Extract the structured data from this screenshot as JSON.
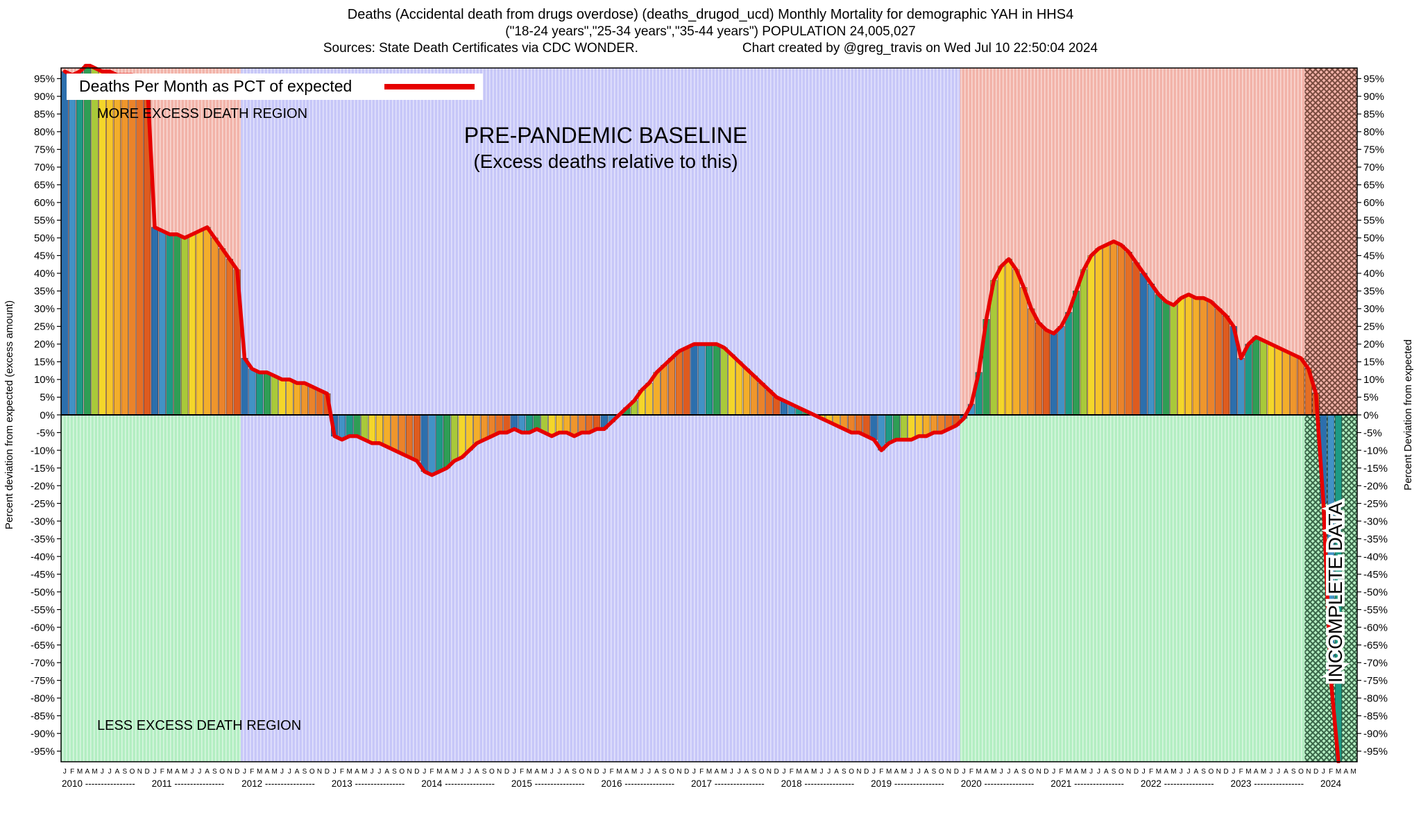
{
  "header": {
    "title_line1": "Deaths (Accidental death from drugs overdose) (deaths_drugod_ucd) Monthly Mortality for demographic YAH in HHS4",
    "title_line2": "(\"18-24 years\",\"25-34 years\",\"35-44 years\") POPULATION 24,005,027",
    "sources": "Sources: State Death Certificates via CDC WONDER.",
    "credit": "Chart created by @greg_travis on Wed Jul 10 22:50:04 2024"
  },
  "chart_data": {
    "type": "bar",
    "title": "Deaths Per Month as PCT of expected",
    "legend": {
      "label": "Deaths Per Month as PCT of expected",
      "line_color": "#e60000"
    },
    "ylabel_left": "Percent deviation from expected (excess amount)",
    "ylabel_right": "Percent Deviation from expected",
    "ylim": [
      -98,
      98
    ],
    "ytick_step": 5,
    "ytick_max": 95,
    "grid": false,
    "legend_position": "top-left",
    "month_letters": "JFMAMJJASOND",
    "years": [
      2010,
      2011,
      2012,
      2013,
      2014,
      2015,
      2016,
      2017,
      2018,
      2019,
      2020,
      2021,
      2022,
      2023,
      2024
    ],
    "start_month": "2010-01",
    "end_month": "2024-05",
    "values_pct": [
      97,
      96,
      97,
      99,
      98,
      97,
      97,
      96,
      96,
      96,
      95,
      94,
      53,
      52,
      51,
      51,
      50,
      51,
      52,
      53,
      50,
      47,
      44,
      41,
      16,
      13,
      12,
      12,
      11,
      10,
      10,
      9,
      9,
      8,
      7,
      6,
      -6,
      -7,
      -6,
      -6,
      -7,
      -8,
      -8,
      -9,
      -10,
      -11,
      -12,
      -13,
      -16,
      -17,
      -16,
      -15,
      -13,
      -12,
      -10,
      -8,
      -7,
      -6,
      -5,
      -5,
      -4,
      -5,
      -5,
      -4,
      -5,
      -6,
      -5,
      -5,
      -6,
      -5,
      -5,
      -4,
      -4,
      -2,
      0,
      2,
      4,
      7,
      9,
      12,
      14,
      16,
      18,
      19,
      20,
      20,
      20,
      20,
      19,
      17,
      15,
      13,
      11,
      9,
      7,
      5,
      4,
      3,
      2,
      1,
      0,
      -1,
      -2,
      -3,
      -4,
      -5,
      -5,
      -6,
      -7,
      -10,
      -8,
      -7,
      -7,
      -7,
      -6,
      -6,
      -5,
      -5,
      -4,
      -3,
      -1,
      3,
      12,
      27,
      38,
      42,
      44,
      41,
      36,
      30,
      26,
      24,
      23,
      25,
      29,
      35,
      41,
      45,
      47,
      48,
      49,
      48,
      46,
      43,
      40,
      37,
      34,
      32,
      31,
      33,
      34,
      33,
      33,
      32,
      30,
      28,
      25,
      16,
      20,
      22,
      21,
      20,
      19,
      18,
      17,
      16,
      13,
      6,
      -25,
      -75,
      -98,
      null,
      null
    ],
    "month_colors": [
      "#2c6fad",
      "#4292c6",
      "#1d9a84",
      "#2f9e55",
      "#a9c93a",
      "#f4d62a",
      "#f6c52a",
      "#f3ae2b",
      "#ef962c",
      "#eb832a",
      "#e56f24",
      "#de5b1f"
    ],
    "line_color": "#e60000",
    "regions_def": {
      "baseline_start_month": 24,
      "baseline_end_month": 120,
      "incomplete_start_month": 166,
      "total_months": 173
    },
    "colors": {
      "more_excess_bg": "#f2b3a9",
      "less_excess_bg": "#b3eec2",
      "baseline_bg": "#c7c7f8",
      "stripe": "rgba(255,255,255,0.5)",
      "incomplete_top_hatch": "rgba(77,38,25,0.75)",
      "incomplete_bottom_hatch": "rgba(20,61,36,0.78)",
      "zero_line": "#000000"
    },
    "annotations": {
      "more_excess": "MORE EXCESS DEATH REGION",
      "less_excess": "LESS EXCESS DEATH REGION",
      "baseline_line1": "PRE-PANDEMIC BASELINE",
      "baseline_line2": "(Excess deaths relative to this)",
      "incomplete": "INCOMPLETE DATA"
    }
  }
}
